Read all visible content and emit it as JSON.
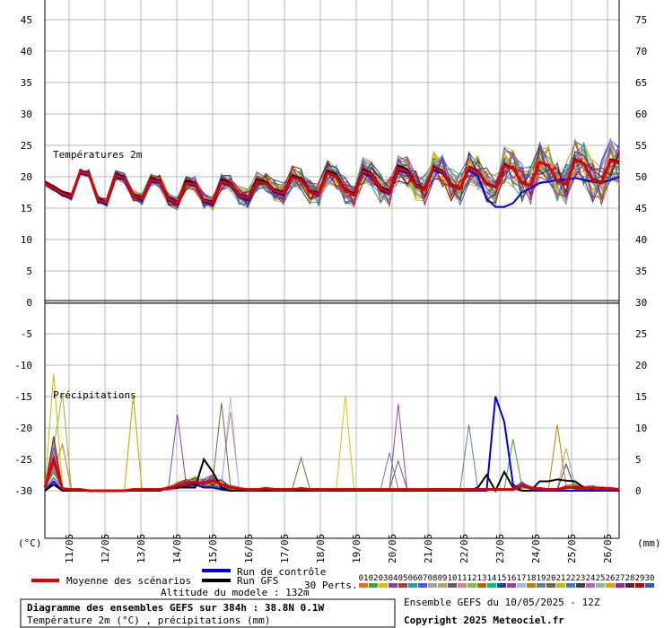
{
  "chart_data": {
    "type": "line",
    "title": "Diagramme des ensembles GEFS sur 384h : 38.8N 0.1W",
    "subtitle": "Température 2m (°C) , précipitations (mm)",
    "altitude": "Altitude du modele : 132m",
    "ensemble_run": "Ensemble GEFS du 10/05/2025 - 12Z",
    "copyright": "Copyright 2025 Meteociel.fr",
    "dates": [
      "11/05",
      "12/05",
      "13/05",
      "14/05",
      "15/05",
      "16/05",
      "17/05",
      "18/05",
      "19/05",
      "20/05",
      "21/05",
      "22/05",
      "23/05",
      "24/05",
      "25/05",
      "26/05"
    ],
    "left_axis_ticks": [
      "45",
      "40",
      "35",
      "30",
      "25",
      "20",
      "15",
      "10",
      "5",
      "0",
      "-5",
      "-10",
      "-15",
      "-20",
      "-25",
      "-30"
    ],
    "right_axis_ticks": [
      "75",
      "70",
      "65",
      "60",
      "55",
      "50",
      "45",
      "40",
      "35",
      "30",
      "25",
      "20",
      "15",
      "10",
      "5",
      "0"
    ],
    "left_unit": "(°C)",
    "right_unit": "(mm)",
    "temp_panel_label": "Températures 2m",
    "precip_panel_label": "Précipitations",
    "temp_range": [
      0,
      45
    ],
    "precip_range": [
      0,
      30
    ],
    "legend": {
      "mean": "Moyenne des scénarios",
      "control": "Run de contrôle",
      "gfs": "Run GFS",
      "perts": "30 Perts."
    },
    "member_labels": [
      "01",
      "02",
      "03",
      "04",
      "05",
      "06",
      "07",
      "08",
      "09",
      "10",
      "11",
      "12",
      "13",
      "14",
      "15",
      "16",
      "17",
      "18",
      "19",
      "20",
      "21",
      "22",
      "23",
      "24",
      "25",
      "26",
      "27",
      "28",
      "29",
      "30"
    ],
    "member_colors": [
      "#e07020",
      "#40a040",
      "#e0c000",
      "#8040c0",
      "#b04020",
      "#20a0a0",
      "#4060e0",
      "#a0a0a0",
      "#c0a060",
      "#606060",
      "#e08080",
      "#80c040",
      "#c06000",
      "#00c080",
      "#2040a0",
      "#a040a0",
      "#a0c0e0",
      "#c08000",
      "#6080a0",
      "#806040",
      "#c0c000",
      "#4080c0",
      "#404040",
      "#c060c0",
      "#80c0a0",
      "#e0a000",
      "#a020a0",
      "#602020",
      "#c00000",
      "#2060c0"
    ],
    "series": [
      {
        "name": "Moyenne des scénarios",
        "color": "#e00000",
        "temperature": [
          19.0,
          18.2,
          17.3,
          16.8,
          20.8,
          20.5,
          16.3,
          15.9,
          20.2,
          19.8,
          17.0,
          16.5,
          19.5,
          19.2,
          16.5,
          15.8,
          19.0,
          18.8,
          16.2,
          15.9,
          19.2,
          18.8,
          17.0,
          16.6,
          19.2,
          18.9,
          17.8,
          17.3,
          19.9,
          19.5,
          17.6,
          17.2,
          20.6,
          20.1,
          17.8,
          17.2,
          20.9,
          20.4,
          18.1,
          17.5,
          21.4,
          20.8,
          18.6,
          18.0,
          21.4,
          20.8,
          18.6,
          18.1,
          21.4,
          20.8,
          18.8,
          18.3,
          21.8,
          21.3,
          19.0,
          18.6,
          22.3,
          21.8,
          19.3,
          18.8,
          22.6,
          22.1,
          19.4,
          19.0,
          22.6,
          22.1
        ],
        "precipitation": [
          0.5,
          5.0,
          0.3,
          0.2,
          0.2,
          0.0,
          0.0,
          0.0,
          0.0,
          0.0,
          0.2,
          0.2,
          0.2,
          0.2,
          0.4,
          0.8,
          1.0,
          1.4,
          1.1,
          1.6,
          1.0,
          0.5,
          0.3,
          0.2,
          0.2,
          0.3,
          0.2,
          0.2,
          0.2,
          0.3,
          0.2,
          0.2,
          0.2,
          0.2,
          0.2,
          0.2,
          0.2,
          0.2,
          0.2,
          0.2,
          0.2,
          0.2,
          0.2,
          0.2,
          0.2,
          0.2,
          0.2,
          0.2,
          0.2,
          0.2,
          0.2,
          0.2,
          0.2,
          0.2,
          0.8,
          0.4,
          0.3,
          0.2,
          0.2,
          0.5,
          0.6,
          0.4,
          0.5,
          0.3,
          0.3,
          0.2
        ]
      },
      {
        "name": "Run de contrôle",
        "color": "#0000e0",
        "temperature": [
          19.0,
          18.0,
          17.0,
          16.5,
          20.5,
          20.2,
          16.0,
          15.5,
          19.8,
          19.5,
          16.8,
          16.2,
          19.2,
          19.0,
          16.2,
          15.5,
          19.0,
          18.5,
          16.0,
          15.5,
          19.0,
          18.5,
          16.8,
          16.2,
          19.0,
          18.8,
          17.5,
          17.0,
          19.8,
          19.5,
          17.5,
          17.0,
          20.5,
          20.0,
          17.8,
          17.0,
          20.5,
          20.0,
          17.8,
          17.2,
          21.0,
          20.5,
          18.5,
          18.0,
          21.0,
          20.5,
          18.5,
          18.0,
          21.0,
          20.2,
          16.5,
          15.2,
          15.2,
          15.8,
          17.5,
          18.2,
          19.0,
          19.2,
          19.5,
          19.5,
          19.8,
          19.5,
          19.2,
          19.0,
          19.5,
          20.0
        ],
        "precipitation": [
          0,
          1.5,
          0,
          0,
          0,
          0,
          0,
          0,
          0,
          0,
          0,
          0,
          0,
          0,
          0.5,
          0.5,
          0.8,
          1.0,
          0.5,
          0.5,
          0.2,
          0,
          0,
          0,
          0,
          0,
          0,
          0,
          0,
          0,
          0,
          0,
          0,
          0,
          0,
          0,
          0,
          0,
          0,
          0,
          0,
          0,
          0,
          0,
          0,
          0,
          0,
          0,
          0,
          0,
          0,
          15.0,
          11.0,
          1.0,
          0,
          0,
          0,
          0,
          0,
          0,
          0,
          0,
          0,
          0,
          0,
          0
        ]
      },
      {
        "name": "Run GFS",
        "color": "#000000",
        "temperature": [
          19.2,
          18.4,
          17.6,
          17.0,
          21.0,
          20.6,
          16.6,
          16.0,
          20.4,
          20.0,
          17.2,
          16.6,
          19.8,
          19.4,
          16.8,
          16.0,
          19.4,
          19.0,
          16.4,
          16.0,
          19.6,
          19.0,
          17.2,
          16.8,
          19.6,
          19.2,
          18.0,
          17.6,
          20.2,
          19.8,
          17.8,
          17.4,
          21.0,
          20.4,
          18.0,
          17.4,
          21.2,
          20.6,
          18.4,
          17.8,
          21.8,
          21.2,
          18.8,
          18.2,
          21.6,
          21.0,
          18.8,
          18.2,
          21.6,
          21.0,
          19.0,
          18.4,
          22.0,
          21.4,
          19.2,
          18.6,
          22.4,
          21.8,
          19.4,
          18.8,
          22.8,
          22.2,
          19.6,
          19.2,
          22.8,
          22.4
        ],
        "precipitation": [
          0,
          1.0,
          0,
          0,
          0,
          0,
          0,
          0,
          0,
          0,
          0,
          0,
          0,
          0,
          0.5,
          0.5,
          0.5,
          0.5,
          5.0,
          3.0,
          0.5,
          0,
          0,
          0,
          0,
          0,
          0,
          0,
          0,
          0,
          0,
          0,
          0,
          0,
          0,
          0,
          0,
          0,
          0,
          0,
          0,
          0,
          0,
          0,
          0,
          0,
          0,
          0,
          0,
          0.5,
          2.5,
          0,
          3.0,
          0.5,
          0,
          0,
          1.5,
          1.5,
          1.8,
          1.6,
          1.5,
          0.5,
          0.3,
          0.5,
          0.2,
          0
        ]
      }
    ]
  }
}
